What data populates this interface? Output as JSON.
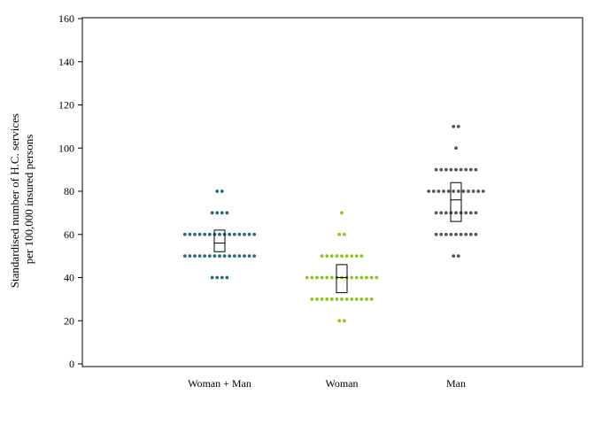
{
  "chart_data": {
    "type": "scatter",
    "subtype": "dot-strip-plot with interquartile boxes",
    "title": "",
    "xlabel": "",
    "ylabel_lines": [
      "Standardised number of H.C. services",
      "per 100,000 insured persons"
    ],
    "ylim": [
      0,
      160
    ],
    "yticks": [
      0,
      20,
      40,
      60,
      80,
      100,
      120,
      140,
      160
    ],
    "grid": false,
    "categories": [
      "Woman + Man",
      "Woman",
      "Man"
    ],
    "series": [
      {
        "category": "Woman + Man",
        "color": "#2a6b78",
        "dot_rows": [
          {
            "y": 80,
            "count": 2
          },
          {
            "y": 70,
            "count": 4
          },
          {
            "y": 60,
            "count": 15
          },
          {
            "y": 50,
            "count": 15
          },
          {
            "y": 40,
            "count": 4
          }
        ],
        "box": {
          "q1": 52,
          "median": 56,
          "q3": 62
        }
      },
      {
        "category": "Woman",
        "color": "#8dc21f",
        "dot_rows": [
          {
            "y": 70,
            "count": 1
          },
          {
            "y": 60,
            "count": 2
          },
          {
            "y": 50,
            "count": 9
          },
          {
            "y": 40,
            "count": 15
          },
          {
            "y": 30,
            "count": 13
          },
          {
            "y": 20,
            "count": 2
          }
        ],
        "box": {
          "q1": 33,
          "median": 40,
          "q3": 46
        }
      },
      {
        "category": "Man",
        "color": "#555555",
        "dot_rows": [
          {
            "y": 110,
            "count": 2
          },
          {
            "y": 100,
            "count": 1
          },
          {
            "y": 90,
            "count": 9
          },
          {
            "y": 80,
            "count": 12
          },
          {
            "y": 70,
            "count": 9
          },
          {
            "y": 60,
            "count": 9
          },
          {
            "y": 50,
            "count": 2
          }
        ],
        "box": {
          "q1": 66,
          "median": 76,
          "q3": 84
        }
      }
    ]
  }
}
